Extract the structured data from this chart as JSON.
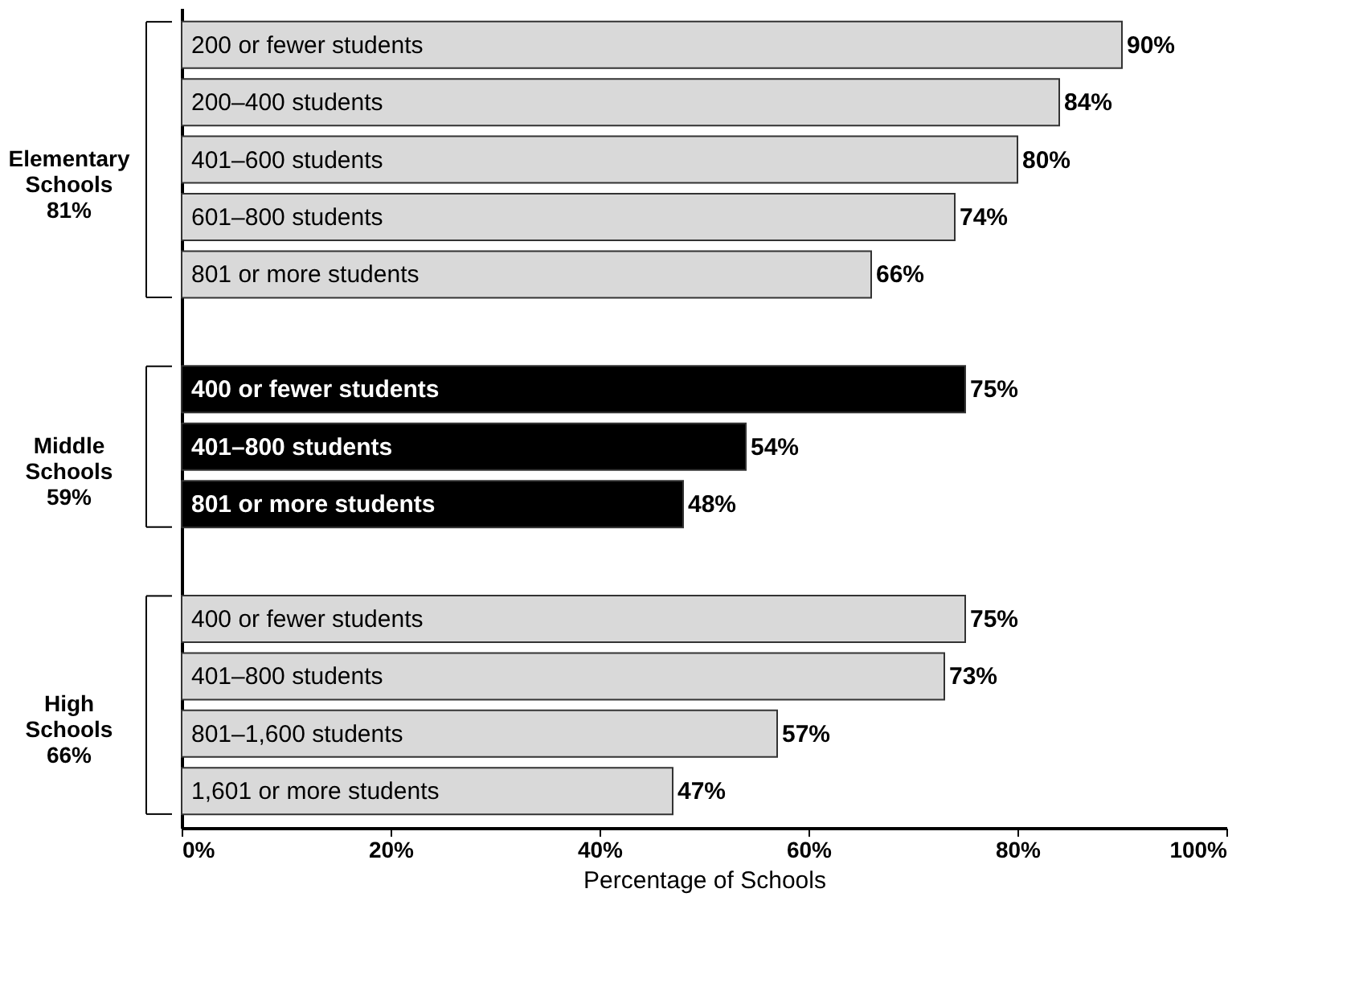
{
  "chart_data": {
    "type": "bar",
    "orientation": "horizontal",
    "categories": [
      "200 or fewer students",
      "200–400 students",
      "401–600 students",
      "601–800 students",
      "801 or more students",
      null,
      "400 or fewer students",
      "401–800 students",
      "801 or more students",
      null,
      "400 or fewer students",
      "401–800 students",
      "801–1,600 students",
      "1,601 or more students"
    ],
    "values": [
      90,
      84,
      80,
      74,
      66,
      null,
      75,
      54,
      48,
      null,
      75,
      73,
      57,
      47
    ],
    "value_labels": [
      "90%",
      "84%",
      "80%",
      "74%",
      "66%",
      null,
      "75%",
      "54%",
      "48%",
      null,
      "75%",
      "73%",
      "57%",
      "47%"
    ],
    "colors": [
      "#d9d9d9",
      "#d9d9d9",
      "#d9d9d9",
      "#d9d9d9",
      "#d9d9d9",
      null,
      "#000000",
      "#000000",
      "#000000",
      null,
      "#d9d9d9",
      "#d9d9d9",
      "#d9d9d9",
      "#d9d9d9"
    ],
    "annotations": [
      "Elementary\nSchools\n81%",
      "Middle\nSchools\n59%",
      "High\nSchools\n66%"
    ],
    "xlabel": "Percentage of Schools",
    "xlim": [
      0,
      100
    ],
    "xticks": [
      {
        "value": 0,
        "label": "0%"
      },
      {
        "value": 20,
        "label": "20%"
      },
      {
        "value": 40,
        "label": "40%"
      },
      {
        "value": 60,
        "label": "60%"
      },
      {
        "value": 80,
        "label": "80%"
      },
      {
        "value": 100,
        "label": "100%"
      }
    ],
    "grid": false
  }
}
